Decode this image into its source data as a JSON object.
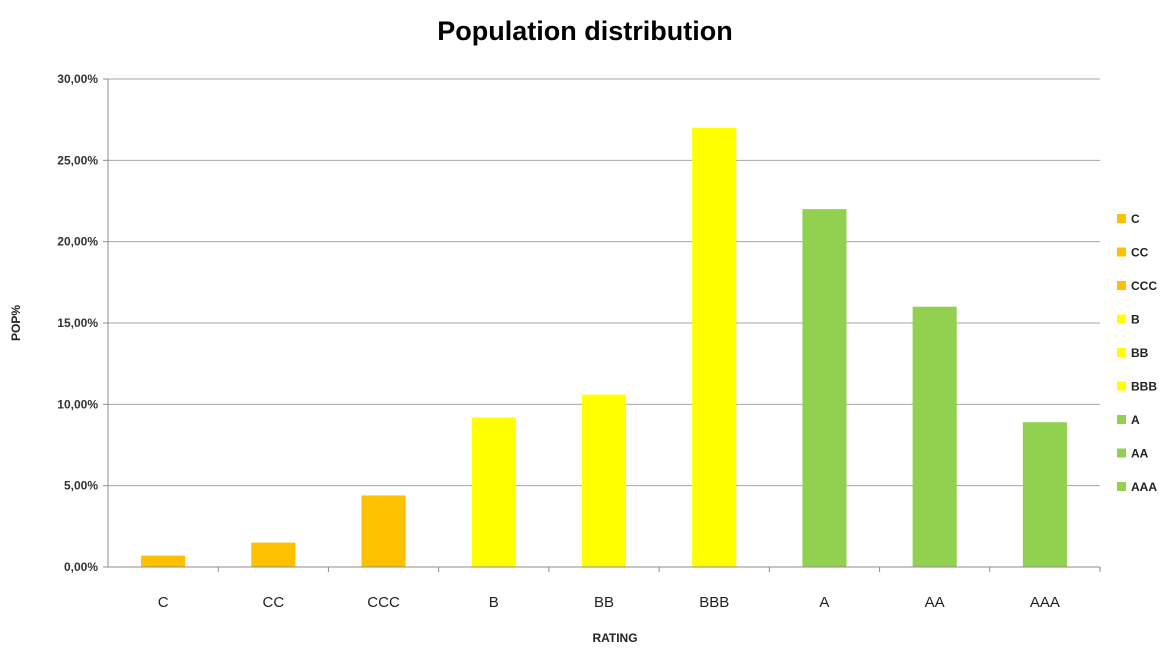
{
  "chart_data": {
    "type": "bar",
    "title": "Population distribution",
    "xlabel": "RATING",
    "ylabel": "POP%",
    "categories": [
      "C",
      "CC",
      "CCC",
      "B",
      "BB",
      "BBB",
      "A",
      "AA",
      "AAA"
    ],
    "values": [
      0.7,
      1.5,
      4.4,
      9.2,
      10.6,
      27.0,
      22.0,
      16.0,
      8.9
    ],
    "colors": [
      "#FFC000",
      "#FFC000",
      "#FFC000",
      "#FFFF00",
      "#FFFF00",
      "#FFFF00",
      "#92D050",
      "#92D050",
      "#92D050"
    ],
    "ylim": [
      0,
      30
    ],
    "yticks": [
      0,
      5,
      10,
      15,
      20,
      25,
      30
    ],
    "ytick_labels": [
      "0,00%",
      "5,00%",
      "10,00%",
      "15,00%",
      "20,00%",
      "25,00%",
      "30,00%"
    ],
    "grid": "horizontal",
    "legend": {
      "position": "right",
      "entries": [
        "C",
        "CC",
        "CCC",
        "B",
        "BB",
        "BBB",
        "A",
        "AA",
        "AAA"
      ]
    }
  }
}
